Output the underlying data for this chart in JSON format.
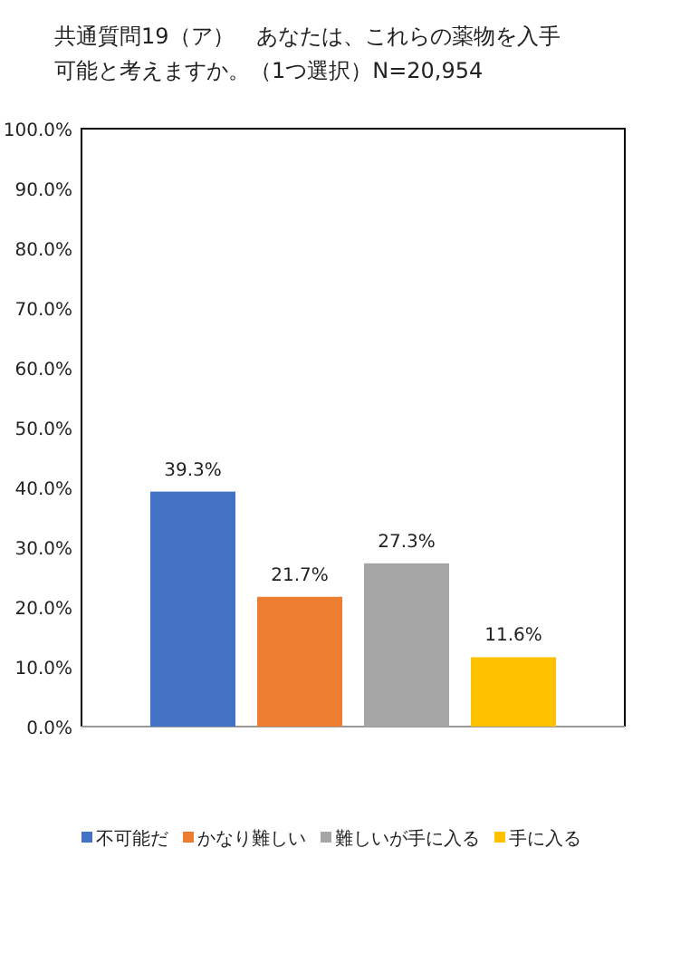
{
  "chart_data": {
    "type": "bar",
    "title": "共通質問19（ア）　あなたは、これらの薬物を入手可能と考えますか。（1つ選択）N=20,954",
    "categories": [
      null
    ],
    "series": [
      {
        "name": "不可能だ",
        "color": "#4472c4",
        "values": [
          39.3
        ],
        "value_labels": [
          "39.3%"
        ]
      },
      {
        "name": "かなり難しい",
        "color": "#ed7d31",
        "values": [
          21.7
        ],
        "value_labels": [
          "21.7%"
        ]
      },
      {
        "name": "難しいが手に入る",
        "color": "#a5a5a5",
        "values": [
          27.3
        ],
        "value_labels": [
          "27.3%"
        ]
      },
      {
        "name": "手に入る",
        "color": "#ffc000",
        "values": [
          11.6
        ],
        "value_labels": [
          "11.6%"
        ]
      }
    ],
    "ylim": [
      0,
      100
    ],
    "yticks": [
      {
        "value": 0,
        "label": "0.0%"
      },
      {
        "value": 10,
        "label": "10.0%"
      },
      {
        "value": 20,
        "label": "20.0%"
      },
      {
        "value": 30,
        "label": "30.0%"
      },
      {
        "value": 40,
        "label": "40.0%"
      },
      {
        "value": 50,
        "label": "50.0%"
      },
      {
        "value": 60,
        "label": "60.0%"
      },
      {
        "value": 70,
        "label": "70.0%"
      },
      {
        "value": 80,
        "label": "80.0%"
      },
      {
        "value": 90,
        "label": "90.0%"
      },
      {
        "value": 100,
        "label": "100.0%"
      }
    ],
    "legend": "bottom"
  }
}
